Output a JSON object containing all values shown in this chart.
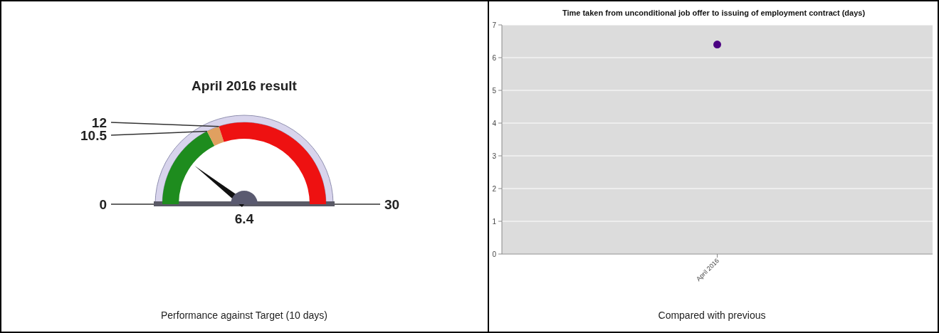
{
  "chart_data": [
    {
      "type": "donut",
      "title": "April 2016 result",
      "categories": [
        "0",
        "10.5",
        "12"
      ],
      "values": [
        35,
        5,
        60
      ],
      "colors": [
        "#1e8c1e",
        "#e0a060",
        "#ee1111"
      ],
      "needle": "0",
      "annotations": [
        "30",
        "6.4",
        "Performance against Target (10 days)"
      ]
    },
    {
      "type": "scatter",
      "title": "Time taken from unconditional job offer to issuing of employment contract (days)",
      "categories": [
        "April 2016"
      ],
      "series": [
        {
          "color": "#4b0082",
          "values": [
            6.4
          ]
        }
      ],
      "ylim": [
        0,
        7
      ],
      "yticks": [
        0,
        1,
        2,
        3,
        4,
        5,
        6,
        7
      ],
      "grid": "y",
      "marker": "circle",
      "annotations": [
        "Compared with previous"
      ]
    }
  ]
}
